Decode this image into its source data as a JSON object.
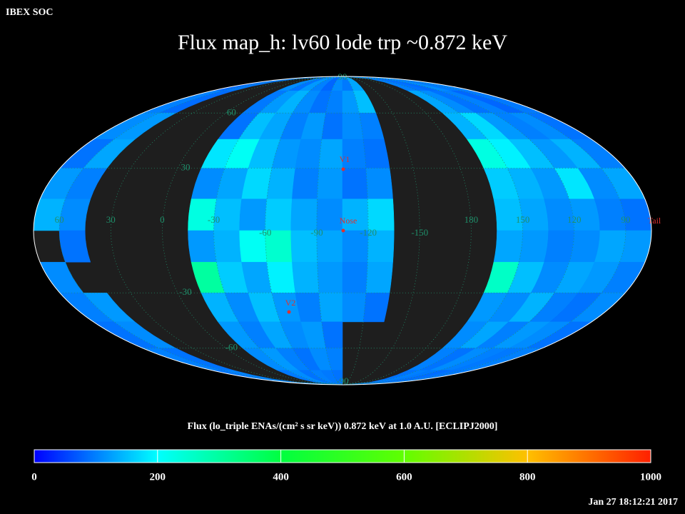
{
  "chart_data": {
    "type": "mollweide-map",
    "header": "IBEX SOC",
    "title": "Flux   map_h: lv60 lode trp ~0.872 keV",
    "colorbar_label": "Flux (lo_triple ENAs/(cm² s sr keV))  0.872 keV at 1.0 A.U. [ECLIPJ2000]",
    "timestamp": "Jan 27 18:12:21 2017",
    "lat_ticks": [
      90,
      60,
      30,
      -30,
      -60,
      -90
    ],
    "lon_ticks": [
      60,
      30,
      0,
      -30,
      -60,
      -90,
      -120,
      -150,
      180,
      150,
      120,
      90
    ],
    "markers": [
      "V1",
      "Nose",
      "V2",
      "Tail"
    ],
    "clim": [
      0,
      1000
    ],
    "cticks": [
      0,
      200,
      400,
      600,
      800,
      1000
    ],
    "colormap": [
      {
        "value": 0,
        "color": "#0000ff"
      },
      {
        "value": 200,
        "color": "#00ffff"
      },
      {
        "value": 400,
        "color": "#00ff40"
      },
      {
        "value": 600,
        "color": "#60ff00"
      },
      {
        "value": 800,
        "color": "#ffc000"
      },
      {
        "value": 1000,
        "color": "#ff2000"
      }
    ],
    "values": [
      [
        80,
        95,
        null,
        null,
        null,
        null,
        110,
        90,
        120,
        100,
        80,
        110,
        95,
        130,
        null,
        null,
        null,
        null,
        100,
        90,
        85,
        110,
        95,
        100
      ],
      [
        100,
        85,
        null,
        null,
        null,
        null,
        95,
        120,
        140,
        110,
        90,
        100,
        120,
        150,
        null,
        null,
        null,
        null,
        130,
        110,
        90,
        100,
        80,
        95
      ],
      [
        110,
        120,
        null,
        null,
        null,
        null,
        90,
        150,
        130,
        100,
        120,
        90,
        110,
        100,
        null,
        null,
        null,
        null,
        140,
        170,
        120,
        100,
        110,
        90
      ],
      [
        90,
        130,
        null,
        null,
        null,
        null,
        180,
        210,
        150,
        120,
        110,
        130,
        100,
        90,
        null,
        null,
        null,
        null,
        230,
        190,
        150,
        120,
        140,
        100
      ],
      [
        120,
        100,
        null,
        null,
        null,
        null,
        110,
        130,
        170,
        140,
        100,
        120,
        90,
        110,
        null,
        null,
        null,
        null,
        160,
        140,
        120,
        180,
        110,
        130
      ],
      [
        140,
        110,
        null,
        null,
        null,
        null,
        230,
        150,
        120,
        160,
        130,
        110,
        140,
        170,
        null,
        null,
        null,
        null,
        150,
        130,
        110,
        120,
        100,
        90
      ],
      [
        null,
        90,
        null,
        null,
        null,
        null,
        120,
        140,
        210,
        250,
        150,
        130,
        110,
        140,
        null,
        null,
        null,
        null,
        130,
        120,
        100,
        110,
        130,
        120
      ],
      [
        110,
        null,
        null,
        null,
        null,
        null,
        300,
        160,
        130,
        190,
        140,
        120,
        100,
        130,
        null,
        null,
        null,
        null,
        260,
        150,
        110,
        130,
        120,
        100
      ],
      [
        100,
        120,
        null,
        null,
        null,
        null,
        140,
        110,
        150,
        120,
        100,
        130,
        110,
        90,
        null,
        null,
        null,
        null,
        120,
        110,
        140,
        100,
        90,
        110
      ],
      [
        90,
        110,
        null,
        null,
        null,
        null,
        120,
        100,
        130,
        110,
        120,
        90,
        null,
        null,
        null,
        null,
        null,
        null,
        110,
        130,
        100,
        120,
        110,
        90
      ],
      [
        100,
        90,
        null,
        null,
        null,
        null,
        110,
        120,
        100,
        90,
        110,
        100,
        null,
        null,
        null,
        null,
        null,
        null,
        100,
        90,
        110,
        100,
        95,
        100
      ],
      [
        90,
        100,
        null,
        null,
        null,
        null,
        95,
        110,
        90,
        100,
        95,
        90,
        null,
        null,
        null,
        null,
        null,
        null,
        90,
        100,
        95,
        85,
        90,
        95
      ]
    ]
  }
}
